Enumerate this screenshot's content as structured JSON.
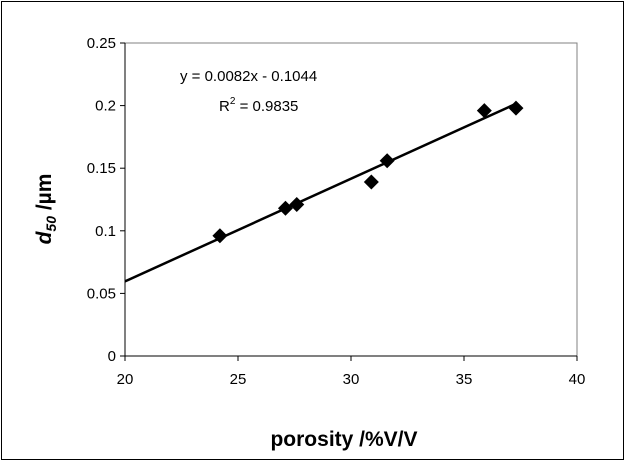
{
  "chart_data": {
    "type": "scatter",
    "title": "",
    "xlabel": "porosity  /%V/V",
    "ylabel": {
      "main": "d",
      "sub": "50",
      "rest": "  /µm"
    },
    "xlim": [
      20,
      40
    ],
    "ylim": [
      0,
      0.25
    ],
    "xticks": [
      20,
      25,
      30,
      35,
      40
    ],
    "xtick_labels": [
      "20",
      "25",
      "30",
      "35",
      "40"
    ],
    "yticks": [
      0,
      0.05,
      0.1,
      0.15,
      0.2,
      0.25
    ],
    "ytick_labels": [
      "0",
      "0.05",
      "0.1",
      "0.15",
      "0.2",
      "0.25"
    ],
    "grid": false,
    "legend": "none",
    "marker": "diamond",
    "marker_color": "#000000",
    "points": [
      {
        "x": 24.2,
        "y": 0.096
      },
      {
        "x": 27.1,
        "y": 0.118
      },
      {
        "x": 27.6,
        "y": 0.121
      },
      {
        "x": 30.9,
        "y": 0.139
      },
      {
        "x": 31.6,
        "y": 0.156
      },
      {
        "x": 35.9,
        "y": 0.196
      },
      {
        "x": 37.3,
        "y": 0.198
      }
    ],
    "trendline": {
      "type": "linear",
      "slope": 0.0082,
      "intercept": -0.1044,
      "x_range": [
        20,
        37.3
      ],
      "equation_label": "y = 0.0082x - 0.1044",
      "r2_label": {
        "base": "R",
        "sup": "2",
        "rest": " = 0.9835"
      }
    }
  }
}
